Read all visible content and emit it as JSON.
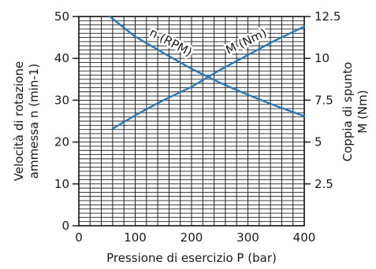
{
  "chart_data": {
    "type": "line",
    "x_axis": {
      "label": "Pressione di esercizio P (bar)",
      "range": [
        0,
        400
      ],
      "ticks": [
        0,
        100,
        200,
        300,
        400
      ],
      "tick_labels": [
        "0",
        "100",
        "200",
        "300",
        "400"
      ]
    },
    "y_axis_left": {
      "label_lines": [
        "Velocità di rotazione",
        "ammessa n (min-1)"
      ],
      "range": [
        0,
        50
      ],
      "ticks": [
        0,
        10,
        20,
        30,
        40,
        50
      ],
      "tick_labels": [
        "0",
        "10",
        "20",
        "30",
        "40",
        "50"
      ]
    },
    "y_axis_right": {
      "label_lines": [
        "Coppia di spunto",
        "M (Nm)"
      ],
      "range": [
        0,
        12.5
      ],
      "ticks": [
        2.5,
        5,
        7.5,
        10,
        12.5
      ],
      "tick_labels": [
        "2.5",
        "5",
        "7.5",
        "10",
        "12.5"
      ]
    },
    "grid": {
      "major": true,
      "vertical_step": 20,
      "horizontal_step": 1
    },
    "series": [
      {
        "name": "n (RPM)",
        "axis": "left",
        "color": "#2a7ab8",
        "x": [
          55,
          100,
          150,
          200,
          250,
          300,
          350,
          400
        ],
        "y": [
          50.0,
          45.2,
          41.3,
          37.5,
          34.2,
          31.3,
          28.6,
          26.2
        ]
      },
      {
        "name": "M (Nm)",
        "axis": "right",
        "color": "#2a7ab8",
        "x": [
          60,
          100,
          150,
          200,
          250,
          300,
          350,
          400
        ],
        "y": [
          5.8,
          6.6,
          7.5,
          8.3,
          9.3,
          10.2,
          11.1,
          11.9
        ]
      }
    ],
    "series_labels": [
      {
        "text": "n (RPM)",
        "series": 0,
        "at_x": 160,
        "at_y": 43.0,
        "angle": 28
      },
      {
        "text": "M (Nm)",
        "series": 1,
        "at_x": 300,
        "at_y": 10.8,
        "angle": -26
      }
    ]
  }
}
